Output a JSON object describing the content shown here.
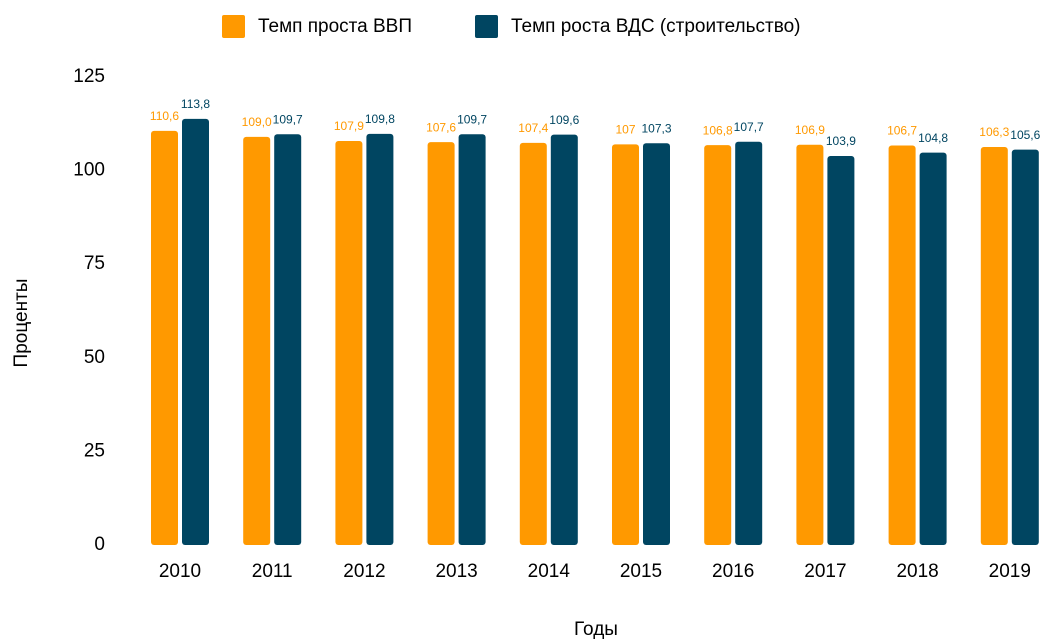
{
  "chart_data": {
    "type": "bar",
    "categories": [
      "2010",
      "2011",
      "2012",
      "2013",
      "2014",
      "2015",
      "2016",
      "2017",
      "2018",
      "2019"
    ],
    "series": [
      {
        "name": "Темп проста ВВП",
        "color": "#ff9900",
        "values": [
          110.6,
          109.0,
          107.9,
          107.6,
          107.4,
          107,
          106.8,
          106.9,
          106.7,
          106.3
        ],
        "value_labels": [
          "110,6",
          "109,0",
          "107,9",
          "107,6",
          "107,4",
          "107",
          "106,8",
          "106,9",
          "106,7",
          "106,3"
        ]
      },
      {
        "name": "Темп роста ВДС (строительство)",
        "color": "#004561",
        "values": [
          113.8,
          109.7,
          109.8,
          109.7,
          109.6,
          107.3,
          107.7,
          103.9,
          104.8,
          105.6
        ],
        "value_labels": [
          "113,8",
          "109,7",
          "109,8",
          "109,7",
          "109,6",
          "107,3",
          "107,7",
          "103,9",
          "104,8",
          "105,6"
        ]
      }
    ],
    "xlabel": "Годы",
    "ylabel": "Проценты",
    "ylim": [
      0,
      125
    ],
    "yticks": [
      0,
      25,
      50,
      75,
      100,
      125
    ],
    "grid": false,
    "legend": "top"
  }
}
